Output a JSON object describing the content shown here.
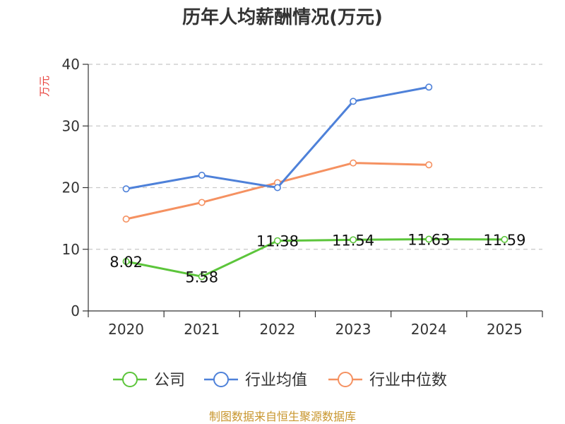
{
  "chart_data": {
    "type": "line",
    "title": "历年人均薪酬情况(万元)",
    "xlabel": "",
    "ylabel": "万元",
    "categories": [
      "2020",
      "2021",
      "2022",
      "2023",
      "2024",
      "2025"
    ],
    "ylim": [
      0,
      40
    ],
    "yticks": [
      0,
      10,
      20,
      30,
      40
    ],
    "grid": true,
    "legend_position": "bottom",
    "series": [
      {
        "name": "公司",
        "color": "#5cc53b",
        "values": [
          8.02,
          5.58,
          11.38,
          11.54,
          11.63,
          11.59
        ],
        "labels": [
          "8.02",
          "5.58",
          "11.38",
          "11.54",
          "11.63",
          "11.59"
        ],
        "show_labels": true
      },
      {
        "name": "行业均值",
        "color": "#4e81d9",
        "values": [
          19.8,
          22.0,
          20.0,
          34.0,
          36.3,
          null
        ],
        "show_labels": false
      },
      {
        "name": "行业中位数",
        "color": "#f59161",
        "values": [
          14.9,
          17.6,
          20.8,
          24.0,
          23.7,
          null
        ],
        "show_labels": false
      }
    ],
    "source": "制图数据来自恒生聚源数据库"
  }
}
